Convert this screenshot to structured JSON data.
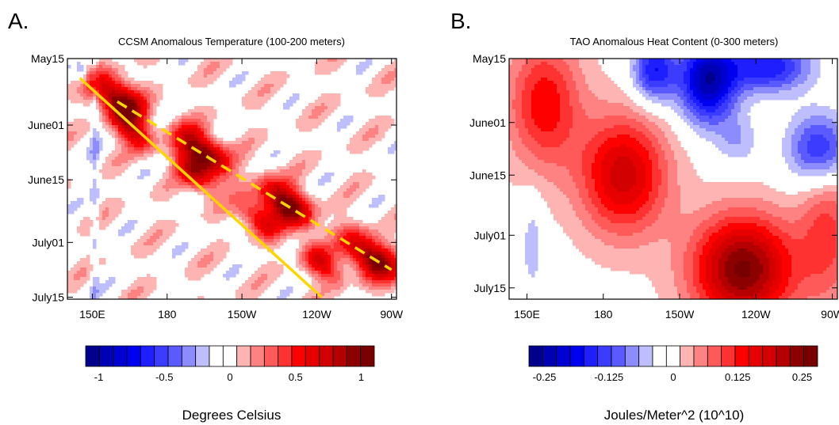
{
  "chart_data": [
    {
      "type": "heatmap",
      "panel_letter": "A.",
      "title": "CCSM Anomalous Temperature (100-200 meters)",
      "x_ticks": [
        "150E",
        "180",
        "150W",
        "120W",
        "90W"
      ],
      "x_tick_lon_east": [
        150,
        180,
        210,
        240,
        270
      ],
      "xlim_lon_east": [
        140,
        272
      ],
      "y_ticks": [
        "May15",
        "June01",
        "June15",
        "July01",
        "July15"
      ],
      "y_tick_day": [
        0,
        17,
        31,
        47,
        61
      ],
      "ylim_day": [
        0,
        61.5
      ],
      "colorbar": {
        "label": "Degrees Celsius",
        "tick_labels": [
          "-1",
          "-0.5",
          "0",
          "0.5",
          "1"
        ],
        "tick_values": [
          -1,
          -0.5,
          0,
          0.5,
          1
        ],
        "range": [
          -1.1,
          1.1
        ],
        "colors": [
          "#00008c",
          "#0000b4",
          "#0000d2",
          "#0000f0",
          "#1e1eff",
          "#3c3cff",
          "#5a5aff",
          "#8c8cff",
          "#bebeff",
          "#ffffff",
          "#ffffff",
          "#ffb4b4",
          "#ff8282",
          "#ff5a5a",
          "#ff3232",
          "#ff0000",
          "#e60000",
          "#d20000",
          "#b40000",
          "#8c0000",
          "#780000"
        ]
      },
      "lines": [
        {
          "color": "#ffd400",
          "style": "solid",
          "points": [
            [
              145,
              5
            ],
            [
              242,
              61
            ]
          ]
        },
        {
          "color": "#ffd400",
          "style": "dashed",
          "points": [
            [
              160,
              11
            ],
            [
              270,
              54
            ]
          ]
        }
      ],
      "warm_bands": [
        {
          "start": [
            152,
            7
          ],
          "end": [
            270,
            54
          ],
          "width": 3.5
        },
        {
          "start": [
            160,
            16
          ],
          "end": [
            248,
            55
          ],
          "width": 2.8
        }
      ]
    },
    {
      "type": "heatmap",
      "panel_letter": "B.",
      "title": "TAO Anomalous Heat Content (0-300 meters)",
      "x_ticks": [
        "150E",
        "180",
        "150W",
        "120W",
        "90W"
      ],
      "x_tick_lon_east": [
        150,
        180,
        210,
        240,
        270
      ],
      "xlim_lon_east": [
        143,
        272
      ],
      "y_ticks": [
        "May15",
        "June01",
        "June15",
        "July01",
        "July15"
      ],
      "y_tick_day": [
        0,
        17,
        31,
        47,
        61
      ],
      "ylim_day": [
        0,
        64
      ],
      "colorbar": {
        "label": "Joules/Meter^2  (10^10)",
        "tick_labels": [
          "-0.25",
          "-0.125",
          "0",
          "0.125",
          "0.25"
        ],
        "tick_values": [
          -0.25,
          -0.125,
          0,
          0.125,
          0.25
        ],
        "range": [
          -0.28,
          0.28
        ],
        "colors": [
          "#00008c",
          "#0000b4",
          "#0000d2",
          "#0000f0",
          "#1e1eff",
          "#3c3cff",
          "#5a5aff",
          "#8c8cff",
          "#bebeff",
          "#ffffff",
          "#ffffff",
          "#ffb4b4",
          "#ff8282",
          "#ff5a5a",
          "#ff3232",
          "#ff0000",
          "#e60000",
          "#d20000",
          "#b40000",
          "#8c0000",
          "#780000"
        ]
      },
      "blobs": [
        {
          "lon": 188,
          "day": 31,
          "sx": 12,
          "sy": 11,
          "amp": 0.19
        },
        {
          "lon": 235,
          "day": 56,
          "sx": 14,
          "sy": 10,
          "amp": 0.26
        },
        {
          "lon": 157,
          "day": 12,
          "sx": 10,
          "sy": 12,
          "amp": 0.14
        },
        {
          "lon": 200,
          "day": 3,
          "sx": 6,
          "sy": 6,
          "amp": -0.17
        },
        {
          "lon": 221,
          "day": 6,
          "sx": 8,
          "sy": 8,
          "amp": -0.24
        },
        {
          "lon": 245,
          "day": 2,
          "sx": 12,
          "sy": 5,
          "amp": -0.17
        },
        {
          "lon": 265,
          "day": 24,
          "sx": 9,
          "sy": 7,
          "amp": -0.16
        },
        {
          "lon": 152,
          "day": 50,
          "sx": 3,
          "sy": 9,
          "amp": -0.06
        },
        {
          "lon": 268,
          "day": 46,
          "sx": 8,
          "sy": 14,
          "amp": 0.1
        },
        {
          "lon": 233,
          "day": 22,
          "sx": 6,
          "sy": 5,
          "amp": -0.06
        }
      ]
    }
  ]
}
